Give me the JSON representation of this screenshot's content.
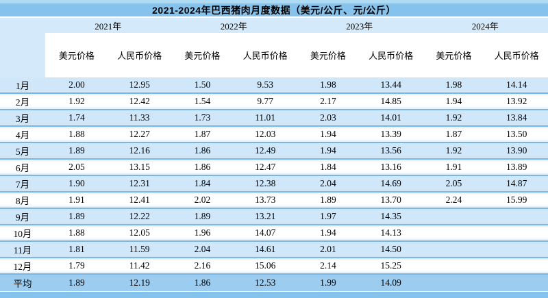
{
  "table": {
    "title": "2021-2024年巴西猪肉月度数据（美元/公斤、元/公斤）",
    "year_headers": [
      "2021年",
      "2022年",
      "2023年",
      "2024年"
    ],
    "sub_headers": [
      "美元价格",
      "人民币价格",
      "美元价格",
      "人民币价格",
      "美元价格",
      "人民币价格",
      "美元价格",
      "人民币价格"
    ],
    "rows": [
      {
        "label": "1月",
        "values": [
          "2.00",
          "12.95",
          "1.50",
          "9.53",
          "1.98",
          "13.44",
          "1.98",
          "14.14"
        ]
      },
      {
        "label": "2月",
        "values": [
          "1.92",
          "12.42",
          "1.54",
          "9.77",
          "2.17",
          "14.85",
          "1.94",
          "13.92"
        ]
      },
      {
        "label": "3月",
        "values": [
          "1.74",
          "11.33",
          "1.73",
          "11.01",
          "2.03",
          "14.01",
          "1.92",
          "13.84"
        ]
      },
      {
        "label": "4月",
        "values": [
          "1.88",
          "12.27",
          "1.87",
          "12.03",
          "1.94",
          "13.39",
          "1.87",
          "13.50"
        ]
      },
      {
        "label": "5月",
        "values": [
          "1.89",
          "12.16",
          "1.86",
          "12.49",
          "1.94",
          "13.56",
          "1.92",
          "13.90"
        ]
      },
      {
        "label": "6月",
        "values": [
          "2.05",
          "13.15",
          "1.86",
          "12.47",
          "1.84",
          "13.16",
          "1.91",
          "13.89"
        ]
      },
      {
        "label": "7月",
        "values": [
          "1.90",
          "12.31",
          "1.84",
          "12.38",
          "2.04",
          "14.69",
          "2.05",
          "14.87"
        ]
      },
      {
        "label": "8月",
        "values": [
          "1.91",
          "12.41",
          "2.02",
          "13.73",
          "1.89",
          "13.70",
          "2.24",
          "15.99"
        ]
      },
      {
        "label": "9月",
        "values": [
          "1.89",
          "12.22",
          "1.89",
          "13.21",
          "1.97",
          "14.35",
          "",
          ""
        ]
      },
      {
        "label": "10月",
        "values": [
          "1.88",
          "12.05",
          "1.96",
          "14.07",
          "1.94",
          "14.13",
          "",
          ""
        ]
      },
      {
        "label": "11月",
        "values": [
          "1.81",
          "11.59",
          "2.04",
          "14.61",
          "2.01",
          "14.50",
          "",
          ""
        ]
      },
      {
        "label": "12月",
        "values": [
          "1.79",
          "11.42",
          "2.16",
          "15.06",
          "2.14",
          "15.25",
          "",
          ""
        ]
      },
      {
        "label": "平均",
        "values": [
          "1.89",
          "12.19",
          "1.86",
          "12.53",
          "1.99",
          "14.09",
          "",
          ""
        ]
      }
    ],
    "colors": {
      "title_bar": "#85c2ec",
      "top_strip": "#aedaf3",
      "year_row": "#d4e9f9",
      "light_row": "#cfe7f8",
      "avg_row": "#9ccdf1",
      "row_line": "#7db6e1",
      "text": "#000000"
    }
  }
}
